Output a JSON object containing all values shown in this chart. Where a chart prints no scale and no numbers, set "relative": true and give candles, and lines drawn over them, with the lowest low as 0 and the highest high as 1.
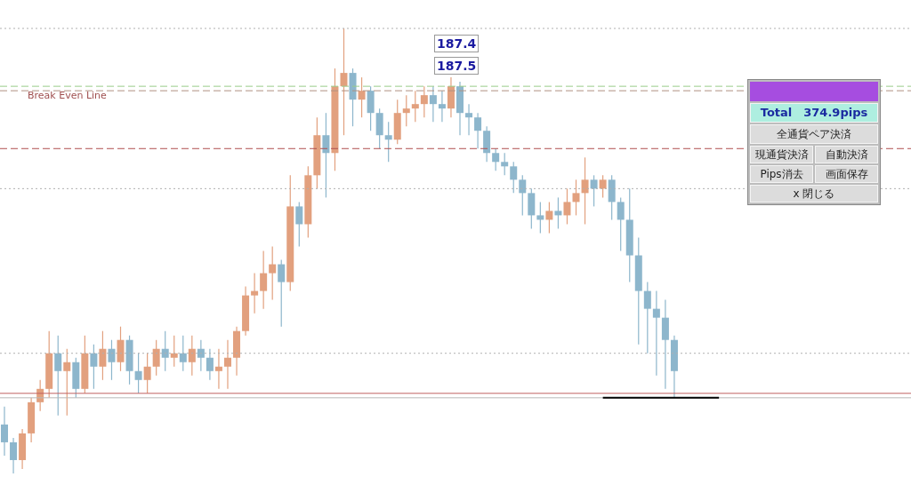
{
  "chart_data": {
    "type": "candlestick",
    "relative": true,
    "categories": [
      null,
      null,
      null,
      null,
      null,
      null,
      null,
      null,
      null,
      null,
      null,
      null,
      null,
      null,
      null,
      null,
      null,
      null,
      null,
      null,
      null,
      null,
      null,
      null,
      null,
      null,
      null,
      null,
      null,
      null,
      null,
      null,
      null,
      null,
      null,
      null,
      null,
      null,
      null,
      null,
      null,
      null,
      null,
      null,
      null,
      null,
      null,
      null,
      null,
      null,
      null,
      null,
      null,
      null,
      null,
      null,
      null,
      null,
      null,
      null,
      null,
      null,
      null,
      null,
      null,
      null,
      null,
      null,
      null,
      null,
      null,
      null,
      null,
      null,
      null,
      null,
      null,
      null,
      null,
      null,
      null,
      null,
      null,
      null,
      null,
      null,
      null,
      null,
      null,
      null,
      null,
      null,
      null,
      null,
      null,
      null,
      null,
      null,
      null,
      null,
      null,
      null
    ],
    "ohlc": [
      [
        0.11,
        0.15,
        0.04,
        0.07
      ],
      [
        0.07,
        0.08,
        0,
        0.03
      ],
      [
        0.03,
        0.1,
        0.01,
        0.09
      ],
      [
        0.09,
        0.17,
        0.07,
        0.16
      ],
      [
        0.16,
        0.21,
        0.14,
        0.19
      ],
      [
        0.19,
        0.32,
        0.17,
        0.27
      ],
      [
        0.27,
        0.31,
        0.13,
        0.23
      ],
      [
        0.23,
        0.28,
        0.13,
        0.25
      ],
      [
        0.25,
        0.26,
        0.17,
        0.19
      ],
      [
        0.19,
        0.31,
        0.18,
        0.27
      ],
      [
        0.27,
        0.29,
        0.19,
        0.24
      ],
      [
        0.24,
        0.32,
        0.21,
        0.28
      ],
      [
        0.28,
        0.3,
        0.21,
        0.25
      ],
      [
        0.25,
        0.33,
        0.23,
        0.3
      ],
      [
        0.3,
        0.31,
        0.2,
        0.23
      ],
      [
        0.23,
        0.27,
        0.18,
        0.21
      ],
      [
        0.21,
        0.27,
        0.18,
        0.24
      ],
      [
        0.24,
        0.3,
        0.22,
        0.28
      ],
      [
        0.28,
        0.32,
        0.23,
        0.26
      ],
      [
        0.26,
        0.31,
        0.24,
        0.27
      ],
      [
        0.27,
        0.31,
        0.23,
        0.25
      ],
      [
        0.25,
        0.31,
        0.22,
        0.28
      ],
      [
        0.28,
        0.3,
        0.23,
        0.26
      ],
      [
        0.26,
        0.28,
        0.21,
        0.23
      ],
      [
        0.23,
        0.28,
        0.19,
        0.24
      ],
      [
        0.24,
        0.3,
        0.19,
        0.26
      ],
      [
        0.26,
        0.33,
        0.22,
        0.32
      ],
      [
        0.32,
        0.42,
        0.31,
        0.4
      ],
      [
        0.4,
        0.45,
        0.36,
        0.41
      ],
      [
        0.41,
        0.5,
        0.37,
        0.45
      ],
      [
        0.45,
        0.51,
        0.39,
        0.47
      ],
      [
        0.47,
        0.48,
        0.33,
        0.43
      ],
      [
        0.43,
        0.67,
        0.41,
        0.6
      ],
      [
        0.6,
        0.61,
        0.51,
        0.56
      ],
      [
        0.56,
        0.69,
        0.53,
        0.67
      ],
      [
        0.67,
        0.8,
        0.64,
        0.76
      ],
      [
        0.76,
        0.81,
        0.62,
        0.72
      ],
      [
        0.72,
        0.91,
        0.68,
        0.87
      ],
      [
        0.87,
        1,
        0.76,
        0.9
      ],
      [
        0.9,
        0.91,
        0.78,
        0.84
      ],
      [
        0.84,
        0.89,
        0.8,
        0.86
      ],
      [
        0.86,
        0.87,
        0.77,
        0.81
      ],
      [
        0.81,
        0.82,
        0.73,
        0.76
      ],
      [
        0.76,
        0.79,
        0.7,
        0.75
      ],
      [
        0.75,
        0.84,
        0.74,
        0.81
      ],
      [
        0.81,
        0.85,
        0.78,
        0.82
      ],
      [
        0.82,
        0.86,
        0.79,
        0.83
      ],
      [
        0.83,
        0.87,
        0.8,
        0.85
      ],
      [
        0.85,
        0.87,
        0.79,
        0.83
      ],
      [
        0.83,
        0.86,
        0.79,
        0.82
      ],
      [
        0.82,
        0.89,
        0.8,
        0.87
      ],
      [
        0.87,
        0.88,
        0.76,
        0.81
      ],
      [
        0.81,
        0.83,
        0.76,
        0.8
      ],
      [
        0.8,
        0.81,
        0.73,
        0.77
      ],
      [
        0.77,
        0.78,
        0.7,
        0.72
      ],
      [
        0.72,
        0.73,
        0.68,
        0.7
      ],
      [
        0.7,
        0.72,
        0.67,
        0.69
      ],
      [
        0.69,
        0.7,
        0.63,
        0.66
      ],
      [
        0.66,
        0.67,
        0.58,
        0.63
      ],
      [
        0.63,
        0.64,
        0.55,
        0.58
      ],
      [
        0.58,
        0.61,
        0.54,
        0.57
      ],
      [
        0.57,
        0.61,
        0.54,
        0.59
      ],
      [
        0.59,
        0.62,
        0.55,
        0.58
      ],
      [
        0.58,
        0.64,
        0.56,
        0.61
      ],
      [
        0.61,
        0.66,
        0.58,
        0.63
      ],
      [
        0.63,
        0.71,
        0.56,
        0.66
      ],
      [
        0.66,
        0.67,
        0.6,
        0.64
      ],
      [
        0.64,
        0.67,
        0.62,
        0.66
      ],
      [
        0.66,
        0.67,
        0.57,
        0.61
      ],
      [
        0.61,
        0.62,
        0.5,
        0.57
      ],
      [
        0.57,
        0.64,
        0.43,
        0.49
      ],
      [
        0.49,
        0.53,
        0.29,
        0.41
      ],
      [
        0.41,
        0.43,
        0.27,
        0.37
      ],
      [
        0.37,
        0.41,
        0.22,
        0.35
      ],
      [
        0.35,
        0.39,
        0.19,
        0.3
      ],
      [
        0.3,
        0.31,
        0.17,
        0.23
      ],
      null,
      null,
      null,
      null,
      null,
      null,
      null,
      null,
      null,
      null,
      null,
      null,
      null,
      null,
      null,
      null,
      null,
      null,
      null,
      null,
      null,
      null,
      null,
      null,
      null,
      null
    ],
    "series": [
      {
        "type": "line",
        "color": "#000000",
        "values": [
          null,
          null,
          null,
          null,
          null,
          null,
          null,
          null,
          null,
          null,
          null,
          null,
          null,
          null,
          null,
          null,
          null,
          null,
          null,
          null,
          null,
          null,
          null,
          null,
          null,
          null,
          null,
          null,
          null,
          null,
          null,
          null,
          null,
          null,
          null,
          null,
          null,
          null,
          null,
          null,
          null,
          null,
          null,
          null,
          null,
          null,
          null,
          null,
          null,
          null,
          null,
          null,
          null,
          null,
          null,
          null,
          null,
          null,
          null,
          null,
          null,
          null,
          null,
          null,
          null,
          null,
          null,
          0.17,
          0.17,
          0.17,
          0.17,
          0.17,
          0.17,
          0.17,
          0.17,
          0.17,
          0.17,
          0.17,
          0.17,
          0.17,
          0.17,
          null,
          null,
          null,
          null,
          null,
          null,
          null,
          null,
          null,
          null,
          null,
          null,
          null,
          null,
          null,
          null,
          null,
          null,
          null,
          null,
          null
        ]
      }
    ],
    "ref_lines": [
      {
        "axis": "y",
        "value": 1.0,
        "color": "#b0b0b0",
        "line_style": "dotted"
      },
      {
        "axis": "y",
        "value": 0.64,
        "color": "#b0b0b0",
        "line_style": "dotted"
      },
      {
        "axis": "y",
        "value": 0.27,
        "color": "#b0b0b0",
        "line_style": "dotted"
      },
      {
        "axis": "y",
        "value": 0.87,
        "color": "#9acd8a",
        "line_style": "dashed"
      },
      {
        "axis": "y",
        "value": 0.86,
        "color": "#b09080",
        "line_style": "dashed",
        "label": "Break Even Line"
      },
      {
        "axis": "y",
        "value": 0.73,
        "color": "#b05050",
        "line_style": "dashed"
      },
      {
        "axis": "y",
        "value": 0.18,
        "color": "#c06060",
        "line_style": "solid"
      },
      {
        "axis": "y",
        "value": 0.17,
        "color": "#b8b8b8",
        "line_style": "solid"
      }
    ],
    "annotations": [
      "187.4",
      "187.5",
      "Total　374.9pips",
      "全通貨ペア決済",
      "現通貨決済",
      "自動決済",
      "Pips消去",
      "画面保存",
      "x 閉じる"
    ]
  }
}
